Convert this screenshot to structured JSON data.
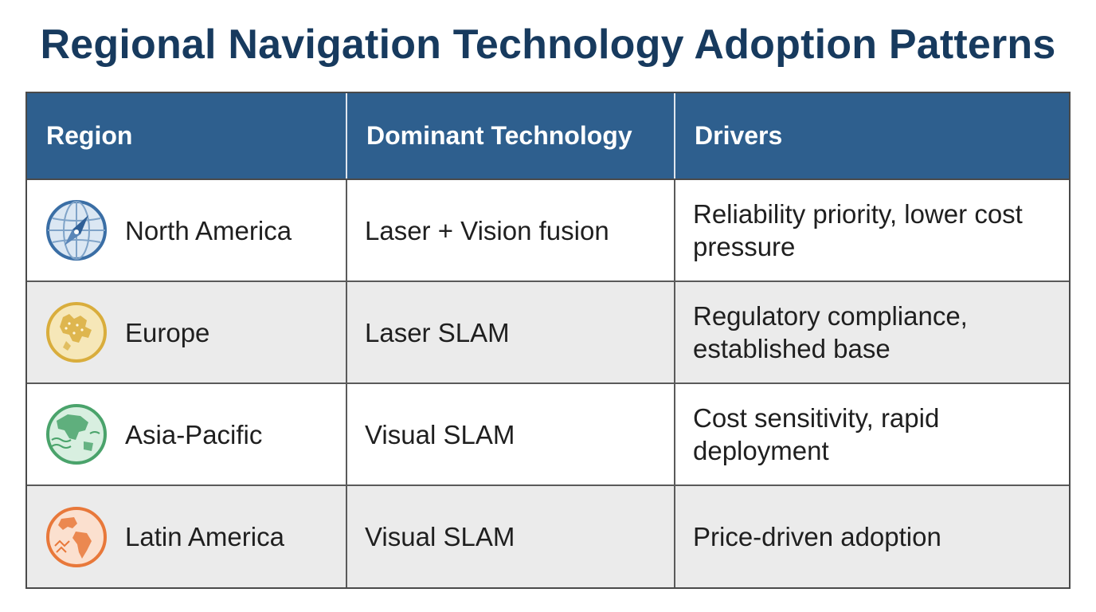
{
  "title": "Regional Navigation Technology Adoption Patterns",
  "table": {
    "headers": [
      "Region",
      "Dominant Technology",
      "Drivers"
    ],
    "rows": [
      {
        "region": "North America",
        "icon": "compass-globe-icon",
        "icon_color": "#3a6ea5",
        "technology": "Laser + Vision fusion",
        "drivers": "Reliability priority, lower cost pressure"
      },
      {
        "region": "Europe",
        "icon": "europe-globe-icon",
        "icon_color": "#d9ad3c",
        "technology": "Laser SLAM",
        "drivers": "Regulatory compliance, established base"
      },
      {
        "region": "Asia-Pacific",
        "icon": "asia-pacific-globe-icon",
        "icon_color": "#4aa36b",
        "technology": "Visual SLAM",
        "drivers": "Cost sensitivity, rapid deployment"
      },
      {
        "region": "Latin America",
        "icon": "latin-america-globe-icon",
        "icon_color": "#e8783a",
        "technology": "Visual SLAM",
        "drivers": "Price-driven adoption"
      }
    ]
  },
  "colors": {
    "title": "#173a5e",
    "header_bg": "#2e5f8e",
    "row_alt_bg": "#ebebeb"
  }
}
